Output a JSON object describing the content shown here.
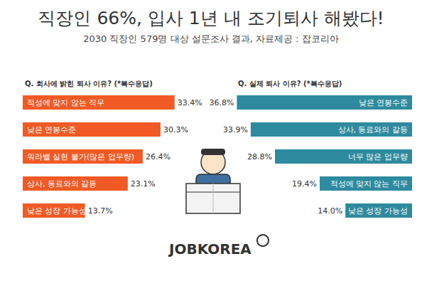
{
  "title": "직장인 66%, 입사 1년 내 조기퇴사 해봤다!",
  "subtitle": "2030 직장인 579명 대상 설문조사 결과, 자료제공 : 잡코리아",
  "logo": "JOBKOREA",
  "chart_data": [
    {
      "type": "bar",
      "orientation": "horizontal",
      "title": "Q. 회사에 밝힌 퇴사 이유? (*복수응답)",
      "categories": [
        "적성에 맞지 않는 직무",
        "낮은 연봉수준",
        "워라밸 실현 불가(많은 업무량)",
        "상사, 동료와의 갈등",
        "낮은 성장 가능성"
      ],
      "values": [
        33.4,
        30.3,
        26.4,
        23.1,
        13.7
      ],
      "value_labels": [
        "33.4%",
        "30.3%",
        "26.4%",
        "23.1%",
        "13.7%"
      ],
      "color": "#f15a24",
      "data_labels": true,
      "xlim": [
        0,
        40
      ]
    },
    {
      "type": "bar",
      "orientation": "horizontal",
      "title": "Q. 실제 퇴사 이유? (*복수응답)",
      "categories": [
        "낮은 연봉수준",
        "상사, 동료와의 갈등",
        "너무 많은 업무량",
        "적성에 맞지 않는 직무",
        "낮은 성장 가능성"
      ],
      "values": [
        36.8,
        33.9,
        28.8,
        19.4,
        14.0
      ],
      "value_labels": [
        "36.8%",
        "33.9%",
        "28.8%",
        "19.4%",
        "14.0%"
      ],
      "color": "#2e8a9e",
      "data_labels": true,
      "xlim": [
        0,
        40
      ]
    }
  ]
}
